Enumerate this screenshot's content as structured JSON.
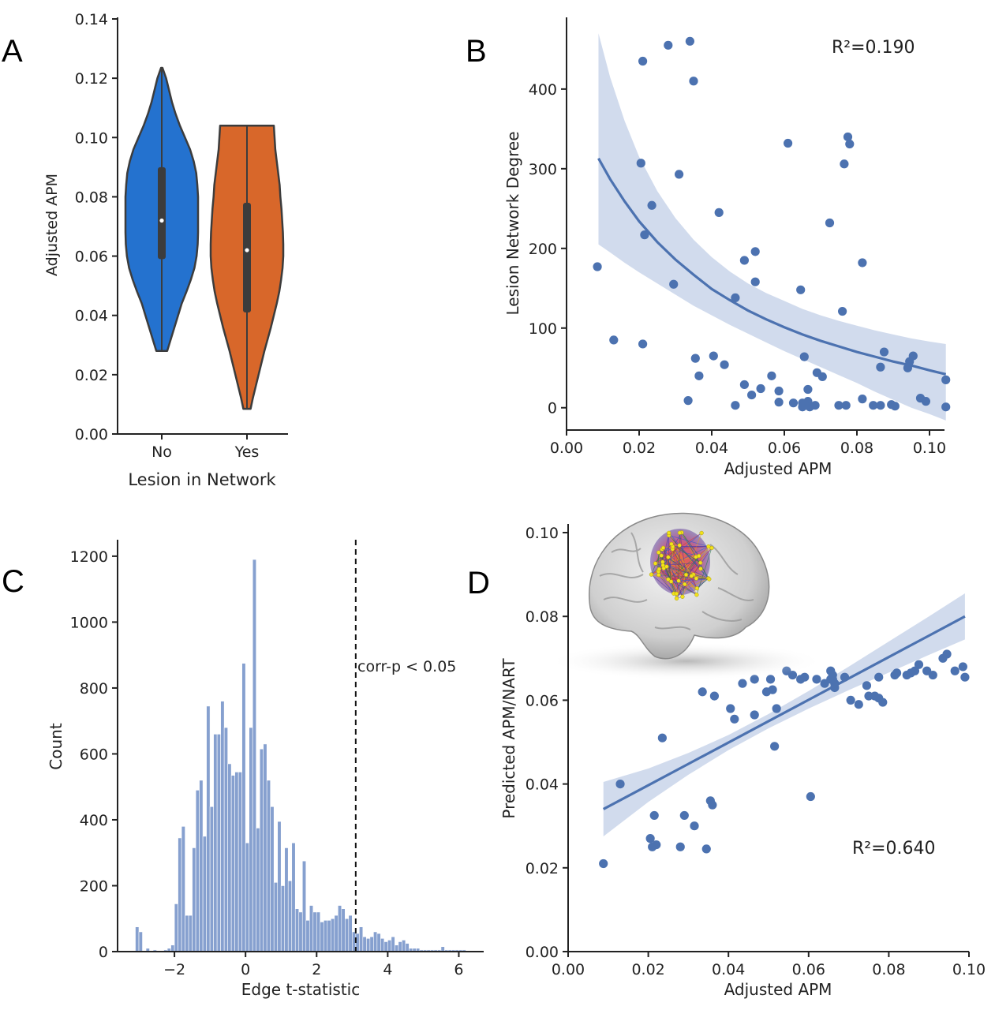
{
  "colors": {
    "no": "#2472cf",
    "yes": "#d8672a",
    "point": "#4c72b0",
    "ci": "#c9d5ea",
    "hist": "#86a0cf",
    "axis": "#222222",
    "violin_edge": "#3c3c3c",
    "box": "#3c3c3c"
  },
  "panels": {
    "A": {
      "label": "A",
      "chart_data": {
        "type": "violin",
        "categories": [
          "No",
          "Yes"
        ],
        "xlabel": "Lesion in Network",
        "ylabel": "Adjusted APM",
        "ylim": [
          0.0,
          0.14
        ],
        "yticks": [
          "0.00",
          "0.02",
          "0.04",
          "0.06",
          "0.08",
          "0.10",
          "0.12",
          "0.14"
        ],
        "series": [
          {
            "category": "No",
            "color": "#2472cf",
            "min": 0.028,
            "max": 0.1235,
            "q1": 0.059,
            "median": 0.072,
            "q3": 0.09,
            "density_y": [
              0.028,
              0.032,
              0.036,
              0.04,
              0.044,
              0.048,
              0.052,
              0.056,
              0.06,
              0.064,
              0.068,
              0.072,
              0.076,
              0.08,
              0.084,
              0.088,
              0.092,
              0.096,
              0.1,
              0.104,
              0.108,
              0.112,
              0.116,
              0.12,
              0.1235
            ],
            "density_w": [
              0.15,
              0.25,
              0.35,
              0.45,
              0.55,
              0.68,
              0.8,
              0.9,
              0.96,
              0.99,
              1.0,
              1.0,
              1.0,
              1.0,
              0.98,
              0.95,
              0.88,
              0.78,
              0.64,
              0.5,
              0.38,
              0.28,
              0.2,
              0.12,
              0.02
            ]
          },
          {
            "category": "Yes",
            "color": "#d8672a",
            "min": 0.0085,
            "max": 0.104,
            "q1": 0.041,
            "median": 0.062,
            "q3": 0.078,
            "density_y": [
              0.0085,
              0.012,
              0.016,
              0.02,
              0.024,
              0.028,
              0.032,
              0.036,
              0.04,
              0.044,
              0.048,
              0.052,
              0.056,
              0.06,
              0.064,
              0.068,
              0.072,
              0.076,
              0.08,
              0.084,
              0.088,
              0.092,
              0.096,
              0.1,
              0.104
            ],
            "density_w": [
              0.1,
              0.16,
              0.24,
              0.32,
              0.4,
              0.48,
              0.57,
              0.66,
              0.74,
              0.82,
              0.89,
              0.94,
              0.98,
              1.0,
              1.0,
              0.99,
              0.97,
              0.95,
              0.92,
              0.9,
              0.86,
              0.82,
              0.78,
              0.76,
              0.74
            ]
          }
        ]
      }
    },
    "B": {
      "label": "B",
      "annotation": "R²=0.190",
      "chart_data": {
        "type": "scatter",
        "xlabel": "Adjusted APM",
        "ylabel": "Lesion Network Degree",
        "xlim": [
          0.0,
          0.11
        ],
        "ylim": [
          -28,
          490
        ],
        "xticks": [
          "0.00",
          "0.02",
          "0.04",
          "0.06",
          "0.08",
          "0.10"
        ],
        "yticks": [
          "0",
          "100",
          "200",
          "300",
          "400"
        ],
        "points": [
          [
            0.028,
            455
          ],
          [
            0.034,
            460
          ],
          [
            0.021,
            435
          ],
          [
            0.035,
            410
          ],
          [
            0.061,
            332
          ],
          [
            0.0775,
            340
          ],
          [
            0.078,
            331
          ],
          [
            0.0205,
            307
          ],
          [
            0.0765,
            306
          ],
          [
            0.031,
            293
          ],
          [
            0.042,
            245
          ],
          [
            0.0235,
            254
          ],
          [
            0.0215,
            217
          ],
          [
            0.0725,
            232
          ],
          [
            0.0815,
            182
          ],
          [
            0.052,
            196
          ],
          [
            0.049,
            185
          ],
          [
            0.0085,
            177
          ],
          [
            0.052,
            158
          ],
          [
            0.0295,
            155
          ],
          [
            0.0465,
            138
          ],
          [
            0.0645,
            148
          ],
          [
            0.076,
            121
          ],
          [
            0.013,
            85
          ],
          [
            0.021,
            80
          ],
          [
            0.0405,
            65
          ],
          [
            0.0355,
            62
          ],
          [
            0.0435,
            54
          ],
          [
            0.0655,
            64
          ],
          [
            0.0875,
            70
          ],
          [
            0.0955,
            65
          ],
          [
            0.0945,
            58
          ],
          [
            0.094,
            50
          ],
          [
            0.0865,
            51
          ],
          [
            0.0365,
            40
          ],
          [
            0.0565,
            40
          ],
          [
            0.069,
            44
          ],
          [
            0.0705,
            39
          ],
          [
            0.049,
            29
          ],
          [
            0.0535,
            24
          ],
          [
            0.0665,
            23
          ],
          [
            0.0585,
            21
          ],
          [
            0.051,
            16
          ],
          [
            0.1045,
            35
          ],
          [
            0.0335,
            9
          ],
          [
            0.0465,
            3
          ],
          [
            0.0585,
            7
          ],
          [
            0.0625,
            6
          ],
          [
            0.065,
            6
          ],
          [
            0.065,
            1
          ],
          [
            0.0665,
            8
          ],
          [
            0.067,
            1
          ],
          [
            0.0685,
            3
          ],
          [
            0.075,
            3
          ],
          [
            0.077,
            3
          ],
          [
            0.0815,
            11
          ],
          [
            0.0845,
            3
          ],
          [
            0.0865,
            3
          ],
          [
            0.0895,
            4
          ],
          [
            0.0905,
            2
          ],
          [
            0.0975,
            12
          ],
          [
            0.099,
            8
          ],
          [
            0.1045,
            1
          ]
        ],
        "fit": {
          "x": [
            0.0088,
            0.012,
            0.016,
            0.02,
            0.025,
            0.03,
            0.035,
            0.04,
            0.045,
            0.05,
            0.055,
            0.06,
            0.065,
            0.07,
            0.075,
            0.08,
            0.085,
            0.09,
            0.095,
            0.1,
            0.1045
          ],
          "y": [
            313,
            287,
            259,
            234,
            208,
            186,
            167,
            149,
            135,
            122,
            111,
            101,
            92,
            84,
            77,
            70,
            64,
            58,
            53,
            47,
            42
          ],
          "lo": [
            205,
            195,
            182,
            170,
            156,
            142,
            128,
            116,
            104,
            93,
            82,
            71,
            61,
            51,
            41,
            31,
            20,
            10,
            0,
            -8,
            -16
          ],
          "hi": [
            470,
            415,
            360,
            315,
            272,
            238,
            211,
            189,
            171,
            156,
            144,
            134,
            124,
            116,
            109,
            103,
            97,
            92,
            87,
            83,
            80
          ]
        }
      }
    },
    "C": {
      "label": "C",
      "annotation": "corr-p < 0.05",
      "chart_data": {
        "type": "bar",
        "xlabel": "Edge t-statistic",
        "ylabel": "Count",
        "xlim": [
          -3.6,
          6.7
        ],
        "ylim": [
          0,
          1250
        ],
        "xticks": [
          -2,
          0,
          2,
          4,
          6
        ],
        "xtick_labels": [
          "−2",
          "0",
          "2",
          "4",
          "6"
        ],
        "yticks": [
          "0",
          "200",
          "400",
          "600",
          "800",
          "1000",
          "1200"
        ],
        "threshold": 3.1,
        "bin_start": -3.1,
        "bin_width": 0.1,
        "counts": [
          75,
          60,
          0,
          10,
          0,
          5,
          0,
          0,
          5,
          10,
          20,
          145,
          345,
          380,
          110,
          110,
          315,
          490,
          520,
          350,
          745,
          440,
          660,
          660,
          760,
          680,
          570,
          535,
          545,
          545,
          875,
          330,
          680,
          1190,
          375,
          615,
          630,
          520,
          440,
          210,
          395,
          200,
          315,
          215,
          330,
          130,
          120,
          275,
          95,
          140,
          120,
          120,
          90,
          95,
          95,
          100,
          110,
          140,
          130,
          100,
          110,
          60,
          55,
          75,
          45,
          40,
          45,
          60,
          55,
          40,
          30,
          35,
          45,
          20,
          30,
          35,
          25,
          10,
          10,
          10,
          5,
          5,
          5,
          5,
          5,
          5,
          15,
          5,
          5,
          5,
          5,
          5,
          5
        ]
      }
    },
    "D": {
      "label": "D",
      "annotation": "R²=0.640",
      "chart_data": {
        "type": "scatter",
        "xlabel": "Adjusted APM",
        "ylabel": "Predicted APM/NART",
        "xlim": [
          0.0,
          0.1
        ],
        "ylim": [
          0.0,
          0.1
        ],
        "xticks": [
          "0.00",
          "0.02",
          "0.04",
          "0.06",
          "0.08",
          "0.10"
        ],
        "yticks": [
          "0.00",
          "0.02",
          "0.04",
          "0.06",
          "0.08",
          "0.10"
        ],
        "points": [
          [
            0.0088,
            0.021
          ],
          [
            0.013,
            0.04
          ],
          [
            0.0235,
            0.051
          ],
          [
            0.0205,
            0.027
          ],
          [
            0.021,
            0.025
          ],
          [
            0.022,
            0.0255
          ],
          [
            0.0215,
            0.0325
          ],
          [
            0.028,
            0.025
          ],
          [
            0.029,
            0.0325
          ],
          [
            0.0315,
            0.03
          ],
          [
            0.0345,
            0.0245
          ],
          [
            0.0355,
            0.036
          ],
          [
            0.036,
            0.035
          ],
          [
            0.0335,
            0.062
          ],
          [
            0.0365,
            0.061
          ],
          [
            0.0405,
            0.058
          ],
          [
            0.0415,
            0.0555
          ],
          [
            0.0435,
            0.064
          ],
          [
            0.0465,
            0.0565
          ],
          [
            0.0465,
            0.065
          ],
          [
            0.0495,
            0.062
          ],
          [
            0.051,
            0.0625
          ],
          [
            0.0515,
            0.049
          ],
          [
            0.0505,
            0.065
          ],
          [
            0.052,
            0.058
          ],
          [
            0.0545,
            0.067
          ],
          [
            0.056,
            0.066
          ],
          [
            0.059,
            0.0655
          ],
          [
            0.058,
            0.065
          ],
          [
            0.0605,
            0.037
          ],
          [
            0.062,
            0.065
          ],
          [
            0.064,
            0.064
          ],
          [
            0.0655,
            0.065
          ],
          [
            0.0655,
            0.067
          ],
          [
            0.066,
            0.066
          ],
          [
            0.066,
            0.065
          ],
          [
            0.0665,
            0.064
          ],
          [
            0.0665,
            0.063
          ],
          [
            0.069,
            0.0655
          ],
          [
            0.0705,
            0.06
          ],
          [
            0.0725,
            0.059
          ],
          [
            0.0745,
            0.0635
          ],
          [
            0.075,
            0.061
          ],
          [
            0.0765,
            0.061
          ],
          [
            0.0775,
            0.0605
          ],
          [
            0.0775,
            0.0655
          ],
          [
            0.0785,
            0.0595
          ],
          [
            0.0815,
            0.066
          ],
          [
            0.082,
            0.0665
          ],
          [
            0.0845,
            0.066
          ],
          [
            0.0855,
            0.0665
          ],
          [
            0.0865,
            0.067
          ],
          [
            0.0875,
            0.0685
          ],
          [
            0.0895,
            0.067
          ],
          [
            0.091,
            0.066
          ],
          [
            0.0935,
            0.07
          ],
          [
            0.0945,
            0.071
          ],
          [
            0.0965,
            0.067
          ],
          [
            0.0985,
            0.068
          ],
          [
            0.099,
            0.0655
          ]
        ],
        "fit": {
          "x": [
            0.0088,
            0.02,
            0.03,
            0.04,
            0.05,
            0.06,
            0.07,
            0.08,
            0.09,
            0.099
          ],
          "y": [
            0.034,
            0.0397,
            0.0448,
            0.0499,
            0.055,
            0.0601,
            0.0652,
            0.0703,
            0.0754,
            0.08
          ],
          "lo": [
            0.0275,
            0.0357,
            0.0422,
            0.0481,
            0.0533,
            0.058,
            0.0624,
            0.0666,
            0.0708,
            0.0745
          ],
          "hi": [
            0.0405,
            0.0437,
            0.0474,
            0.0517,
            0.0567,
            0.0622,
            0.068,
            0.074,
            0.08,
            0.0855
          ]
        }
      }
    }
  }
}
